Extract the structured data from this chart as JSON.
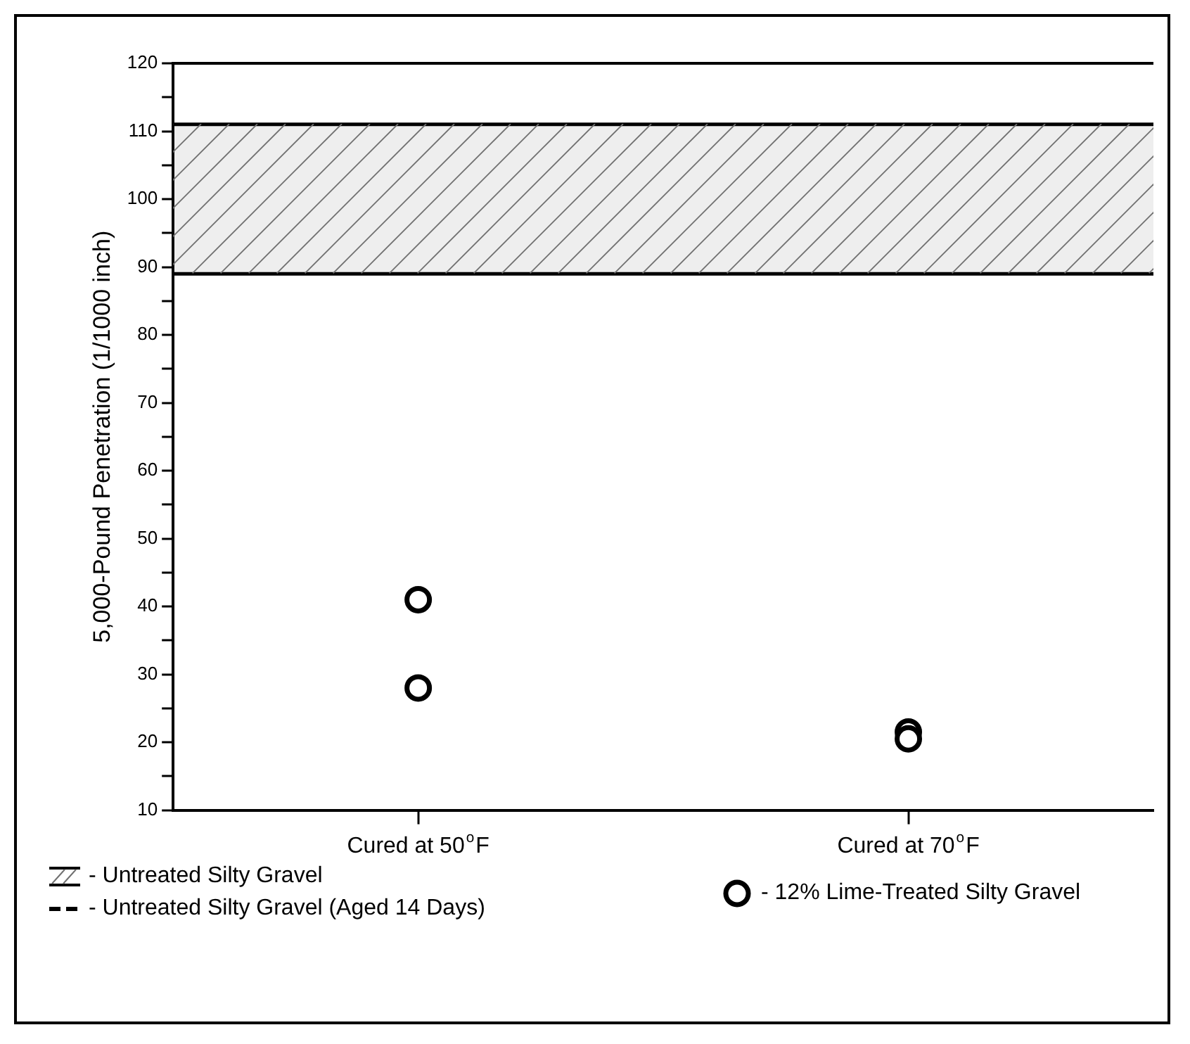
{
  "chart_data": {
    "type": "scatter",
    "ylabel": "5,000-Pound Penetration (1/1000 inch)",
    "categories": [
      "Cured at 50$^{o}$F",
      "Cured at 70$^{o}$F"
    ],
    "series": [
      {
        "name": "- 12% Lime-Treated Silty Gravel",
        "color": "#000000",
        "x": [
          "Cured at 50$^{o}$F",
          "Cured at 50$^{o}$F",
          "Cured at 70$^{o}$F",
          "Cured at 70$^{o}$F"
        ],
        "values": [
          41,
          28,
          21.5,
          20.5
        ]
      }
    ],
    "ylim": [
      10,
      120
    ],
    "yticks": [
      10,
      {
        "value": 15,
        "label": null
      },
      20,
      {
        "value": 25,
        "label": null
      },
      30,
      {
        "value": 35,
        "label": null
      },
      40,
      {
        "value": 45,
        "label": null
      },
      50,
      {
        "value": 55,
        "label": null
      },
      60,
      {
        "value": 65,
        "label": null
      },
      70,
      {
        "value": 75,
        "label": null
      },
      80,
      {
        "value": 85,
        "label": null
      },
      90,
      {
        "value": 95,
        "label": null
      },
      100,
      {
        "value": 105,
        "label": null
      },
      110,
      {
        "value": 115,
        "label": null
      },
      120
    ],
    "bands": [
      {
        "axis": "y",
        "from": 89,
        "to": 111,
        "label": "- Untreated Silty Gravel",
        "color": "#707070"
      }
    ],
    "ref_lines": [
      {
        "axis": "y",
        "value": 89,
        "color": "#000000"
      },
      {
        "axis": "y",
        "value": 111,
        "color": "#000000"
      }
    ],
    "annotations": [
      "- Untreated Silty Gravel (Aged 14 Days)"
    ],
    "marker": "circle",
    "grid": false,
    "legend": "bottom"
  }
}
